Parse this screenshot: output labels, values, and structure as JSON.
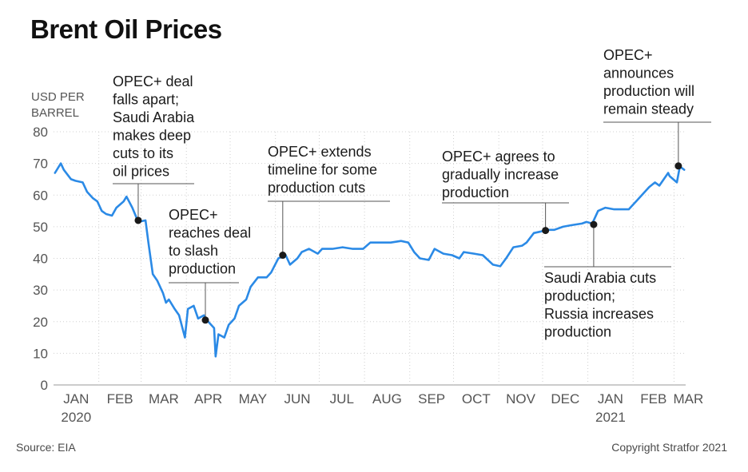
{
  "title": "Brent Oil Prices",
  "source": "Source: EIA",
  "copyright": "Copyright Stratfor 2021",
  "colors": {
    "line": "#2b8ae6",
    "grid": "#d0d0d0",
    "annotation": "#555555",
    "text": "#1a1a1a"
  },
  "chart_data": {
    "type": "line",
    "title": "Brent Oil Prices",
    "ylabel": [
      "USD PER",
      "BARREL"
    ],
    "ylim": [
      0,
      80
    ],
    "yticks": [
      0,
      10,
      20,
      30,
      40,
      50,
      60,
      70,
      80
    ],
    "grid": "horizontal + monthly vertical dotted",
    "x_months": [
      {
        "label": "JAN",
        "sub": "2020"
      },
      {
        "label": "FEB"
      },
      {
        "label": "MAR"
      },
      {
        "label": "APR"
      },
      {
        "label": "MAY"
      },
      {
        "label": "JUN"
      },
      {
        "label": "JUL"
      },
      {
        "label": "AUG"
      },
      {
        "label": "SEP"
      },
      {
        "label": "OCT"
      },
      {
        "label": "NOV"
      },
      {
        "label": "DEC"
      },
      {
        "label": "JAN",
        "sub": "2021"
      },
      {
        "label": "FEB"
      },
      {
        "label": "MAR"
      }
    ],
    "series": [
      {
        "points": [
          [
            "2020-01-02",
            67
          ],
          [
            "2020-01-06",
            70
          ],
          [
            "2020-01-08",
            68
          ],
          [
            "2020-01-13",
            65
          ],
          [
            "2020-01-16",
            64.5
          ],
          [
            "2020-01-21",
            64
          ],
          [
            "2020-01-24",
            61
          ],
          [
            "2020-01-28",
            59
          ],
          [
            "2020-01-31",
            58
          ],
          [
            "2020-02-03",
            55
          ],
          [
            "2020-02-06",
            54
          ],
          [
            "2020-02-10",
            53.5
          ],
          [
            "2020-02-13",
            56
          ],
          [
            "2020-02-18",
            58
          ],
          [
            "2020-02-20",
            59.5
          ],
          [
            "2020-02-24",
            56
          ],
          [
            "2020-02-28",
            51.5
          ],
          [
            "2020-03-04",
            52
          ],
          [
            "2020-03-06",
            45
          ],
          [
            "2020-03-09",
            35
          ],
          [
            "2020-03-12",
            33
          ],
          [
            "2020-03-16",
            29
          ],
          [
            "2020-03-18",
            26
          ],
          [
            "2020-03-20",
            27
          ],
          [
            "2020-03-24",
            24
          ],
          [
            "2020-03-27",
            22
          ],
          [
            "2020-03-31",
            15
          ],
          [
            "2020-04-02",
            24
          ],
          [
            "2020-04-06",
            25
          ],
          [
            "2020-04-09",
            21
          ],
          [
            "2020-04-13",
            22
          ],
          [
            "2020-04-16",
            20
          ],
          [
            "2020-04-20",
            18
          ],
          [
            "2020-04-21",
            9
          ],
          [
            "2020-04-23",
            16
          ],
          [
            "2020-04-27",
            15
          ],
          [
            "2020-04-30",
            19
          ],
          [
            "2020-05-04",
            21
          ],
          [
            "2020-05-07",
            25
          ],
          [
            "2020-05-12",
            27
          ],
          [
            "2020-05-15",
            31
          ],
          [
            "2020-05-20",
            34
          ],
          [
            "2020-05-26",
            34
          ],
          [
            "2020-05-29",
            35.5
          ],
          [
            "2020-06-03",
            40
          ],
          [
            "2020-06-08",
            41
          ],
          [
            "2020-06-11",
            38
          ],
          [
            "2020-06-16",
            40
          ],
          [
            "2020-06-19",
            42
          ],
          [
            "2020-06-24",
            43
          ],
          [
            "2020-06-30",
            41.5
          ],
          [
            "2020-07-03",
            43
          ],
          [
            "2020-07-10",
            43
          ],
          [
            "2020-07-17",
            43.5
          ],
          [
            "2020-07-24",
            43
          ],
          [
            "2020-07-31",
            43
          ],
          [
            "2020-08-05",
            45
          ],
          [
            "2020-08-12",
            45
          ],
          [
            "2020-08-19",
            45
          ],
          [
            "2020-08-26",
            45.5
          ],
          [
            "2020-08-31",
            45
          ],
          [
            "2020-09-04",
            42
          ],
          [
            "2020-09-08",
            40
          ],
          [
            "2020-09-14",
            39.5
          ],
          [
            "2020-09-18",
            43
          ],
          [
            "2020-09-24",
            41.5
          ],
          [
            "2020-09-30",
            41
          ],
          [
            "2020-10-05",
            40
          ],
          [
            "2020-10-08",
            42
          ],
          [
            "2020-10-15",
            41.5
          ],
          [
            "2020-10-21",
            41
          ],
          [
            "2020-10-28",
            38
          ],
          [
            "2020-11-02",
            37.5
          ],
          [
            "2020-11-06",
            40
          ],
          [
            "2020-11-11",
            43.5
          ],
          [
            "2020-11-17",
            44
          ],
          [
            "2020-11-20",
            45
          ],
          [
            "2020-11-25",
            48
          ],
          [
            "2020-11-30",
            48.5
          ],
          [
            "2020-12-04",
            49
          ],
          [
            "2020-12-09",
            49
          ],
          [
            "2020-12-15",
            50
          ],
          [
            "2020-12-21",
            50.5
          ],
          [
            "2020-12-28",
            51
          ],
          [
            "2020-12-31",
            51.5
          ],
          [
            "2021-01-04",
            51
          ],
          [
            "2021-01-08",
            55
          ],
          [
            "2021-01-13",
            56
          ],
          [
            "2021-01-19",
            55.5
          ],
          [
            "2021-01-25",
            55.5
          ],
          [
            "2021-01-29",
            55.5
          ],
          [
            "2021-02-03",
            58
          ],
          [
            "2021-02-08",
            60.5
          ],
          [
            "2021-02-12",
            62.5
          ],
          [
            "2021-02-16",
            64
          ],
          [
            "2021-02-19",
            63
          ],
          [
            "2021-02-25",
            67
          ],
          [
            "2021-02-26",
            66
          ],
          [
            "2021-03-03",
            64
          ],
          [
            "2021-03-05",
            69
          ],
          [
            "2021-03-08",
            68
          ]
        ]
      }
    ],
    "annotations": [
      {
        "date": "2020-02-28",
        "value": 52,
        "lines": [
          "OPEC+ deal",
          "falls apart;",
          "Saudi Arabia",
          "makes deep",
          "cuts to its",
          "oil prices"
        ]
      },
      {
        "date": "2020-04-14",
        "value": 20.5,
        "lines": [
          "OPEC+",
          "reaches deal",
          "to slash",
          "production"
        ]
      },
      {
        "date": "2020-06-06",
        "value": 41,
        "lines": [
          "OPEC+ extends",
          "timeline for some",
          "production cuts"
        ]
      },
      {
        "date": "2020-12-03",
        "value": 48.8,
        "lines": [
          "OPEC+ agrees to",
          "gradually increase",
          "production"
        ]
      },
      {
        "date": "2021-01-05",
        "value": 50.7,
        "lines": [
          "Saudi Arabia cuts",
          "production;",
          "Russia increases",
          "production"
        ]
      },
      {
        "date": "2021-03-04",
        "value": 69.2,
        "lines": [
          "OPEC+",
          "announces",
          "production will",
          "remain steady"
        ]
      }
    ]
  }
}
